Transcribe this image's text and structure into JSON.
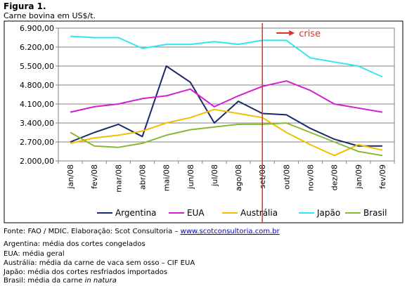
{
  "figure": {
    "title": "Figura 1.",
    "subtitle": "Carne bovina em US$/t."
  },
  "chart_data": {
    "type": "line",
    "categories": [
      "jan/08",
      "fev/08",
      "mar/08",
      "abr/08",
      "mai/08",
      "jun/08",
      "jul/08",
      "ago/08",
      "set/08",
      "out/08",
      "nov/08",
      "dez/08",
      "jan/09",
      "fev/09"
    ],
    "y_ticks": [
      "2.000,00",
      "2.700,00",
      "3.400,00",
      "4.100,00",
      "4.800,00",
      "5.500,00",
      "6.200,00",
      "6.900,00"
    ],
    "ylim": [
      2000,
      6900
    ],
    "grid": true,
    "legend_position": "bottom",
    "annotation": {
      "label": "crise",
      "at_category": "set/08",
      "color": "#e0302a"
    },
    "series": [
      {
        "name": "Argentina",
        "color": "#1a2a6c",
        "values": [
          2700,
          3050,
          3350,
          2900,
          5500,
          4900,
          3400,
          4200,
          3750,
          3700,
          3200,
          2800,
          2550,
          2550
        ]
      },
      {
        "name": "EUA",
        "color": "#d21fd2",
        "values": [
          3800,
          4000,
          4100,
          4300,
          4400,
          4650,
          4000,
          4400,
          4750,
          4950,
          4600,
          4100,
          3950,
          3800
        ]
      },
      {
        "name": "Austrália",
        "color": "#f0c000",
        "values": [
          2650,
          2850,
          2950,
          3100,
          3400,
          3600,
          3900,
          3750,
          3600,
          3050,
          2600,
          2200,
          2600,
          2400
        ]
      },
      {
        "name": "Japão",
        "color": "#33e6f0",
        "values": [
          6600,
          6550,
          6550,
          6150,
          6300,
          6300,
          6400,
          6300,
          6450,
          6450,
          5800,
          5650,
          5500,
          5100
        ]
      },
      {
        "name": "Brasil",
        "color": "#8ab833",
        "values": [
          3050,
          2550,
          2500,
          2650,
          2950,
          3150,
          3250,
          3350,
          3350,
          3400,
          3050,
          2700,
          2350,
          2200
        ]
      }
    ]
  },
  "notes": {
    "source_prefix": "Fonte: FAO / MDIC. Elaboração: Scot Consultoria – ",
    "source_link": "www.scotconsultoria.com.br",
    "argentina": "Argentina: média dos cortes congelados",
    "eua": "EUA: média geral",
    "australia": "Austrália: média da carne de vaca sem osso – CIF EUA",
    "japao": "Japão: média dos cortes resfriados importados",
    "brasil_prefix": "Brasil: média da carne ",
    "brasil_italic": "in natura"
  }
}
